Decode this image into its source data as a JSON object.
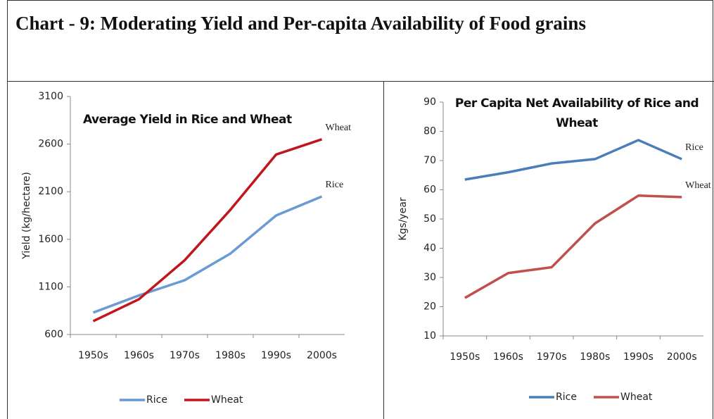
{
  "title": "Chart - 9: Moderating Yield and Per-capita Availability of Food grains",
  "chart_data": [
    {
      "type": "line",
      "title": "Average Yield in Rice and Wheat",
      "y_label": "Yield (kg/hectare)",
      "categories": [
        "1950s",
        "1960s",
        "1970s",
        "1980s",
        "1990s",
        "2000s"
      ],
      "series": [
        {
          "name": "Rice",
          "color": "#6a9ad4",
          "values": [
            830,
            1010,
            1170,
            1450,
            1850,
            2050
          ]
        },
        {
          "name": "Wheat",
          "color": "#c0161e",
          "values": [
            740,
            970,
            1380,
            1910,
            2490,
            2650
          ]
        }
      ],
      "ylim": [
        600,
        3100
      ],
      "yticks": [
        600,
        1100,
        1600,
        2100,
        2600,
        3100
      ],
      "grid": false,
      "legend": "bottom"
    },
    {
      "type": "line",
      "title": "Per Capita Net Availability of Rice and Wheat",
      "y_label": "Kgs/year",
      "categories": [
        "1950s",
        "1960s",
        "1970s",
        "1980s",
        "1990s",
        "2000s"
      ],
      "series": [
        {
          "name": "Rice",
          "color": "#4a7ebb",
          "values": [
            63.5,
            66,
            69,
            70.5,
            77,
            70.5
          ]
        },
        {
          "name": "Wheat",
          "color": "#c0504d",
          "values": [
            23,
            31.5,
            33.5,
            48.5,
            58,
            57.5
          ]
        }
      ],
      "ylim": [
        10,
        90
      ],
      "yticks": [
        10,
        20,
        30,
        40,
        50,
        60,
        70,
        80,
        90
      ],
      "grid": false,
      "legend": "bottom"
    }
  ]
}
